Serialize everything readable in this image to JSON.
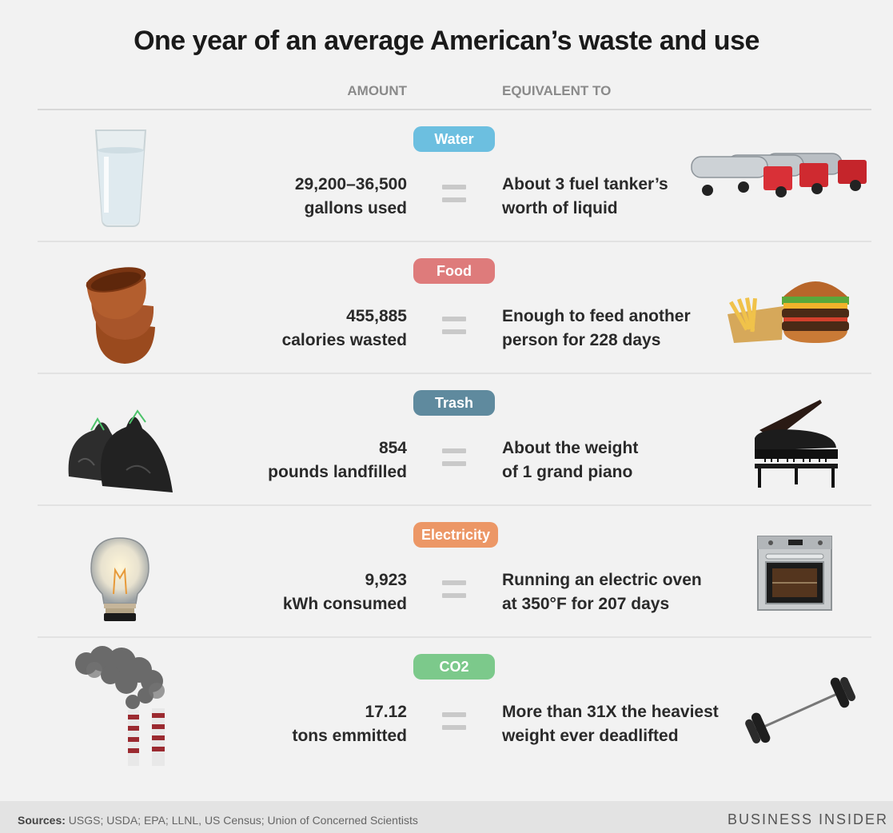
{
  "title": "One year of an average American’s waste and use",
  "columns": {
    "amount": "AMOUNT",
    "equivalent": "EQUIVALENT TO"
  },
  "rows": [
    {
      "category": "Water",
      "color": "#6cbfe0",
      "amount_line1": "29,200–36,500",
      "amount_line2": "gallons used",
      "equiv_line1": "About 3 fuel tanker’s",
      "equiv_line2": "worth of liquid",
      "left_icon": "water-glass-icon",
      "right_icon": "fuel-tanker-trucks-icon"
    },
    {
      "category": "Food",
      "color": "#de7b7b",
      "amount_line1": "455,885",
      "amount_line2": "calories wasted",
      "equiv_line1": "Enough to feed another",
      "equiv_line2": "person for 228 days",
      "left_icon": "wooden-bowls-icon",
      "right_icon": "burger-and-fries-icon"
    },
    {
      "category": "Trash",
      "color": "#5f8a9e",
      "amount_line1": "854",
      "amount_line2": "pounds landfilled",
      "equiv_line1": "About the weight",
      "equiv_line2": "of 1 grand piano",
      "left_icon": "trash-bags-icon",
      "right_icon": "grand-piano-icon"
    },
    {
      "category": "Electricity",
      "color": "#ec9766",
      "amount_line1": "9,923",
      "amount_line2": "kWh consumed",
      "equiv_line1": "Running an electric oven",
      "equiv_line2": "at 350°F for 207 days",
      "left_icon": "light-bulb-icon",
      "right_icon": "electric-oven-icon"
    },
    {
      "category": "CO2",
      "color": "#7cc98b",
      "amount_line1": "17.12",
      "amount_line2": "tons emmitted",
      "equiv_line1": "More than 31X the heaviest",
      "equiv_line2": "weight ever deadlifted",
      "left_icon": "smokestacks-icon",
      "right_icon": "barbell-icon"
    }
  ],
  "footer": {
    "sources_label": "Sources:",
    "sources_text": " USGS; USDA; EPA; LLNL, US Census; Union of Concerned Scientists",
    "brand": "BUSINESS INSIDER"
  }
}
